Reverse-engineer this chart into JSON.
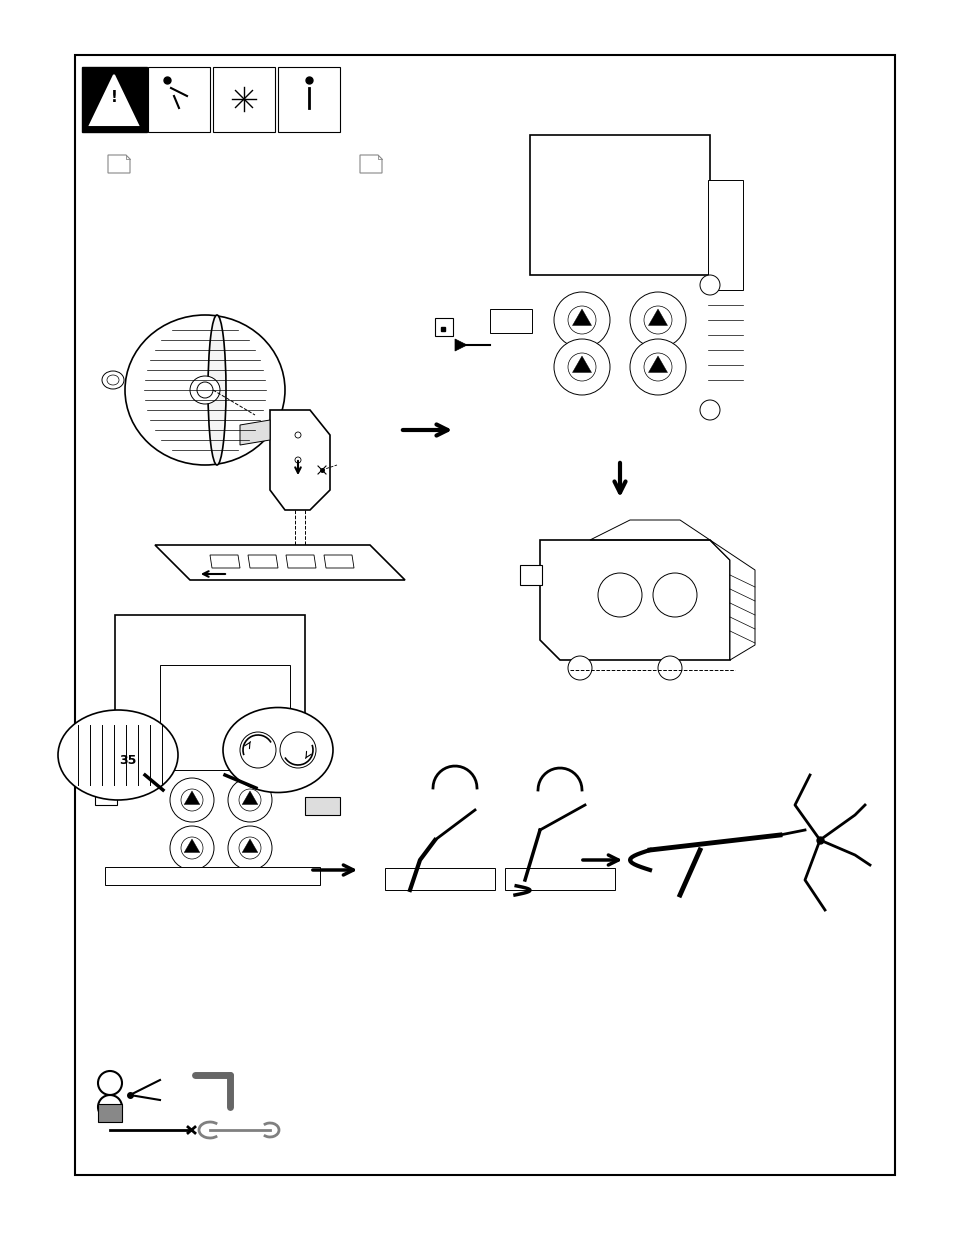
{
  "page_width": 9.54,
  "page_height": 12.35,
  "dpi": 100,
  "bg_color": "#ffffff",
  "lw_thin": 0.7,
  "lw_med": 1.2,
  "lw_thick": 2.0,
  "lw_arrow": 2.5
}
